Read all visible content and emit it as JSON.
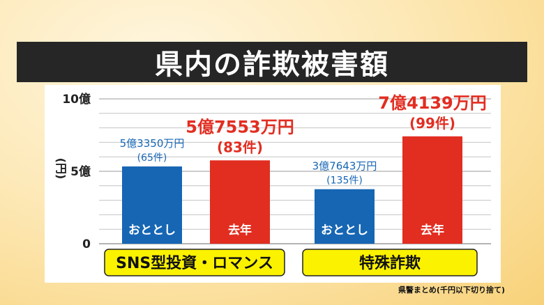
{
  "title": "県内の詐欺被害額",
  "footnote": "県警まとめ(千円以下切り捨て)",
  "colors": {
    "blue": "#1666b4",
    "red": "#e22d21",
    "label_yellow": "#fbf200",
    "grid": "#9a9a9a"
  },
  "chart_data": {
    "type": "bar",
    "title": "県内の詐欺被害額",
    "ylabel": "円",
    "ylim": [
      0,
      1000000000
    ],
    "y_ticks": [
      {
        "value": 0,
        "label": "0"
      },
      {
        "value": 500000000,
        "label": "5億"
      },
      {
        "value": 1000000000,
        "label": "10億"
      }
    ],
    "grid": true,
    "groups": [
      {
        "name": "SNS型投資・ロマンス",
        "bars": [
          {
            "label": "おととし",
            "value": 533500000,
            "value_label": "5億3350万円",
            "count_label": "(65件)",
            "color": "#1666b4"
          },
          {
            "label": "去年",
            "value": 575530000,
            "value_label": "5億7553万円",
            "count_label": "(83件)",
            "color": "#e22d21"
          }
        ]
      },
      {
        "name": "特殊詐欺",
        "bars": [
          {
            "label": "おととし",
            "value": 376430000,
            "value_label": "3億7643万円",
            "count_label": "(135件)",
            "color": "#1666b4"
          },
          {
            "label": "去年",
            "value": 741390000,
            "value_label": "7億4139万円",
            "count_label": "(99件)",
            "color": "#e22d21"
          }
        ]
      }
    ]
  }
}
